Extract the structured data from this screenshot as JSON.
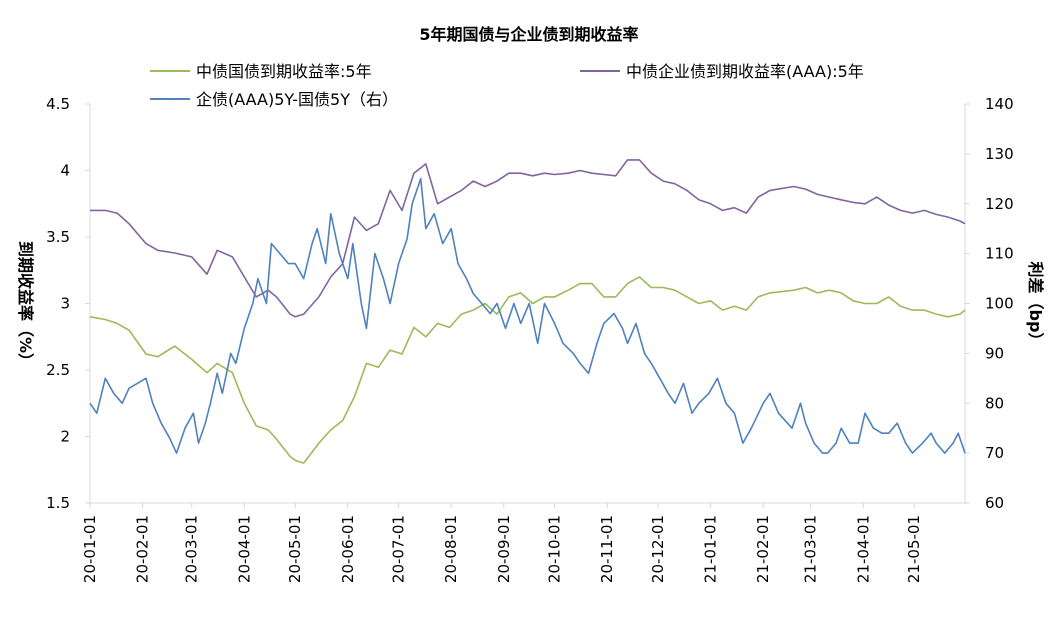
{
  "chart_data": {
    "type": "line",
    "title": "5年期国债与企业债到期收益率",
    "ylabel_left": "到期收益率（%）",
    "ylabel_right": "利差（bp）",
    "ylim_left": [
      1.5,
      4.5
    ],
    "yticks_left": [
      "1.5",
      "2",
      "2.5",
      "3",
      "3.5",
      "4",
      "4.5"
    ],
    "ylim_right": [
      60,
      140
    ],
    "yticks_right": [
      "60",
      "70",
      "80",
      "90",
      "100",
      "110",
      "120",
      "130",
      "140"
    ],
    "x_range": [
      "2020-01-01",
      "2021-05-31"
    ],
    "xticks": [
      "20-01-01",
      "20-02-01",
      "20-03-01",
      "20-04-01",
      "20-05-01",
      "20-06-01",
      "20-07-01",
      "20-08-01",
      "20-09-01",
      "20-10-01",
      "20-11-01",
      "20-12-01",
      "21-01-01",
      "21-02-01",
      "21-03-01",
      "21-04-01",
      "21-05-01"
    ],
    "grid": false,
    "legend": "top",
    "series": [
      {
        "name": "中债国债到期收益率:5年",
        "axis": "left",
        "color": "#9bbb59",
        "x": [
          "2020-01-01",
          "2020-01-10",
          "2020-01-17",
          "2020-01-24",
          "2020-02-03",
          "2020-02-10",
          "2020-02-20",
          "2020-03-01",
          "2020-03-10",
          "2020-03-16",
          "2020-03-25",
          "2020-04-01",
          "2020-04-08",
          "2020-04-15",
          "2020-04-20",
          "2020-04-28",
          "2020-05-01",
          "2020-05-06",
          "2020-05-15",
          "2020-05-22",
          "2020-05-29",
          "2020-06-05",
          "2020-06-12",
          "2020-06-19",
          "2020-06-26",
          "2020-07-03",
          "2020-07-10",
          "2020-07-17",
          "2020-07-24",
          "2020-07-31",
          "2020-08-07",
          "2020-08-14",
          "2020-08-21",
          "2020-08-28",
          "2020-09-04",
          "2020-09-11",
          "2020-09-18",
          "2020-09-25",
          "2020-10-01",
          "2020-10-09",
          "2020-10-16",
          "2020-10-23",
          "2020-10-30",
          "2020-11-06",
          "2020-11-13",
          "2020-11-20",
          "2020-11-27",
          "2020-12-04",
          "2020-12-11",
          "2020-12-18",
          "2020-12-25",
          "2021-01-01",
          "2021-01-08",
          "2021-01-15",
          "2021-01-22",
          "2021-01-29",
          "2021-02-05",
          "2021-02-19",
          "2021-02-26",
          "2021-03-05",
          "2021-03-12",
          "2021-03-19",
          "2021-03-26",
          "2021-04-02",
          "2021-04-09",
          "2021-04-16",
          "2021-04-23",
          "2021-04-30",
          "2021-05-07",
          "2021-05-14",
          "2021-05-21",
          "2021-05-28",
          "2021-05-31"
        ],
        "values": [
          2.9,
          2.88,
          2.85,
          2.8,
          2.62,
          2.6,
          2.68,
          2.58,
          2.48,
          2.55,
          2.48,
          2.25,
          2.08,
          2.05,
          1.98,
          1.85,
          1.82,
          1.8,
          1.95,
          2.05,
          2.12,
          2.3,
          2.55,
          2.52,
          2.65,
          2.62,
          2.82,
          2.75,
          2.85,
          2.82,
          2.92,
          2.95,
          3.0,
          2.92,
          3.05,
          3.08,
          3.0,
          3.05,
          3.05,
          3.1,
          3.15,
          3.15,
          3.05,
          3.05,
          3.15,
          3.2,
          3.12,
          3.12,
          3.1,
          3.05,
          3.0,
          3.02,
          2.95,
          2.98,
          2.95,
          3.05,
          3.08,
          3.1,
          3.12,
          3.08,
          3.1,
          3.08,
          3.02,
          3.0,
          3.0,
          3.05,
          2.98,
          2.95,
          2.95,
          2.92,
          2.9,
          2.92,
          2.95
        ]
      },
      {
        "name": "中债企业债到期收益率(AAA):5年",
        "axis": "left",
        "color": "#8064a2",
        "x": [
          "2020-01-01",
          "2020-01-10",
          "2020-01-17",
          "2020-01-24",
          "2020-02-03",
          "2020-02-10",
          "2020-02-20",
          "2020-03-01",
          "2020-03-10",
          "2020-03-16",
          "2020-03-25",
          "2020-04-01",
          "2020-04-08",
          "2020-04-15",
          "2020-04-20",
          "2020-04-28",
          "2020-05-01",
          "2020-05-06",
          "2020-05-15",
          "2020-05-22",
          "2020-05-29",
          "2020-06-05",
          "2020-06-12",
          "2020-06-19",
          "2020-06-26",
          "2020-07-03",
          "2020-07-10",
          "2020-07-17",
          "2020-07-24",
          "2020-07-31",
          "2020-08-07",
          "2020-08-14",
          "2020-08-21",
          "2020-08-28",
          "2020-09-04",
          "2020-09-11",
          "2020-09-18",
          "2020-09-25",
          "2020-10-01",
          "2020-10-09",
          "2020-10-16",
          "2020-10-23",
          "2020-10-30",
          "2020-11-06",
          "2020-11-13",
          "2020-11-20",
          "2020-11-27",
          "2020-12-04",
          "2020-12-11",
          "2020-12-18",
          "2020-12-25",
          "2021-01-01",
          "2021-01-08",
          "2021-01-15",
          "2021-01-22",
          "2021-01-29",
          "2021-02-05",
          "2021-02-19",
          "2021-02-26",
          "2021-03-05",
          "2021-03-12",
          "2021-03-19",
          "2021-03-26",
          "2021-04-02",
          "2021-04-09",
          "2021-04-16",
          "2021-04-23",
          "2021-04-30",
          "2021-05-07",
          "2021-05-14",
          "2021-05-21",
          "2021-05-28",
          "2021-05-31"
        ],
        "values": [
          3.7,
          3.7,
          3.68,
          3.6,
          3.45,
          3.4,
          3.38,
          3.35,
          3.22,
          3.4,
          3.35,
          3.2,
          3.05,
          3.1,
          3.05,
          2.92,
          2.9,
          2.92,
          3.05,
          3.2,
          3.3,
          3.65,
          3.55,
          3.6,
          3.85,
          3.7,
          3.98,
          4.05,
          3.75,
          3.8,
          3.85,
          3.92,
          3.88,
          3.92,
          3.98,
          3.98,
          3.96,
          3.98,
          3.97,
          3.98,
          4.0,
          3.98,
          3.97,
          3.96,
          4.08,
          4.08,
          3.98,
          3.92,
          3.9,
          3.85,
          3.78,
          3.75,
          3.7,
          3.72,
          3.68,
          3.8,
          3.85,
          3.88,
          3.86,
          3.82,
          3.8,
          3.78,
          3.76,
          3.75,
          3.8,
          3.74,
          3.7,
          3.68,
          3.7,
          3.67,
          3.65,
          3.62,
          3.6
        ]
      },
      {
        "name": "企债(AAA)5Y-国债5Y（右）",
        "axis": "right",
        "color": "#4f81bd",
        "x": [
          "2020-01-01",
          "2020-01-05",
          "2020-01-10",
          "2020-01-15",
          "2020-01-20",
          "2020-01-24",
          "2020-02-03",
          "2020-02-07",
          "2020-02-12",
          "2020-02-17",
          "2020-02-21",
          "2020-02-26",
          "2020-03-02",
          "2020-03-05",
          "2020-03-09",
          "2020-03-12",
          "2020-03-16",
          "2020-03-19",
          "2020-03-24",
          "2020-03-27",
          "2020-04-01",
          "2020-04-06",
          "2020-04-09",
          "2020-04-14",
          "2020-04-17",
          "2020-04-22",
          "2020-04-27",
          "2020-05-01",
          "2020-05-06",
          "2020-05-11",
          "2020-05-14",
          "2020-05-19",
          "2020-05-22",
          "2020-05-27",
          "2020-06-01",
          "2020-06-04",
          "2020-06-09",
          "2020-06-12",
          "2020-06-17",
          "2020-06-22",
          "2020-06-26",
          "2020-07-01",
          "2020-07-06",
          "2020-07-09",
          "2020-07-14",
          "2020-07-17",
          "2020-07-22",
          "2020-07-27",
          "2020-08-01",
          "2020-08-05",
          "2020-08-10",
          "2020-08-14",
          "2020-08-19",
          "2020-08-24",
          "2020-08-28",
          "2020-09-02",
          "2020-09-07",
          "2020-09-11",
          "2020-09-16",
          "2020-09-21",
          "2020-09-25",
          "2020-10-01",
          "2020-10-06",
          "2020-10-12",
          "2020-10-16",
          "2020-10-21",
          "2020-10-26",
          "2020-10-30",
          "2020-11-05",
          "2020-11-10",
          "2020-11-13",
          "2020-11-18",
          "2020-11-23",
          "2020-11-27",
          "2020-12-02",
          "2020-12-07",
          "2020-12-11",
          "2020-12-16",
          "2020-12-21",
          "2020-12-25",
          "2020-12-31",
          "2021-01-05",
          "2021-01-10",
          "2021-01-15",
          "2021-01-20",
          "2021-01-25",
          "2021-02-01",
          "2021-02-05",
          "2021-02-10",
          "2021-02-18",
          "2021-02-23",
          "2021-02-26",
          "2021-03-03",
          "2021-03-08",
          "2021-03-11",
          "2021-03-16",
          "2021-03-19",
          "2021-03-24",
          "2021-03-29",
          "2021-04-02",
          "2021-04-07",
          "2021-04-12",
          "2021-04-16",
          "2021-04-21",
          "2021-04-26",
          "2021-04-30",
          "2021-05-06",
          "2021-05-11",
          "2021-05-14",
          "2021-05-19",
          "2021-05-24",
          "2021-05-27",
          "2021-05-31"
        ],
        "values": [
          80,
          78,
          85,
          82,
          80,
          83,
          85,
          80,
          76,
          73,
          70,
          75,
          78,
          72,
          76,
          80,
          86,
          82,
          90,
          88,
          95,
          100,
          105,
          100,
          112,
          110,
          108,
          108,
          105,
          112,
          115,
          108,
          118,
          110,
          105,
          112,
          100,
          95,
          110,
          105,
          100,
          108,
          113,
          120,
          125,
          115,
          118,
          112,
          115,
          108,
          105,
          102,
          100,
          98,
          100,
          95,
          100,
          96,
          100,
          92,
          100,
          96,
          92,
          90,
          88,
          86,
          92,
          96,
          98,
          95,
          92,
          96,
          90,
          88,
          85,
          82,
          80,
          84,
          78,
          80,
          82,
          85,
          80,
          78,
          72,
          75,
          80,
          82,
          78,
          75,
          80,
          76,
          72,
          70,
          70,
          72,
          75,
          72,
          72,
          78,
          75,
          74,
          74,
          76,
          72,
          70,
          72,
          74,
          72,
          70,
          72,
          74,
          70
        ]
      }
    ]
  }
}
